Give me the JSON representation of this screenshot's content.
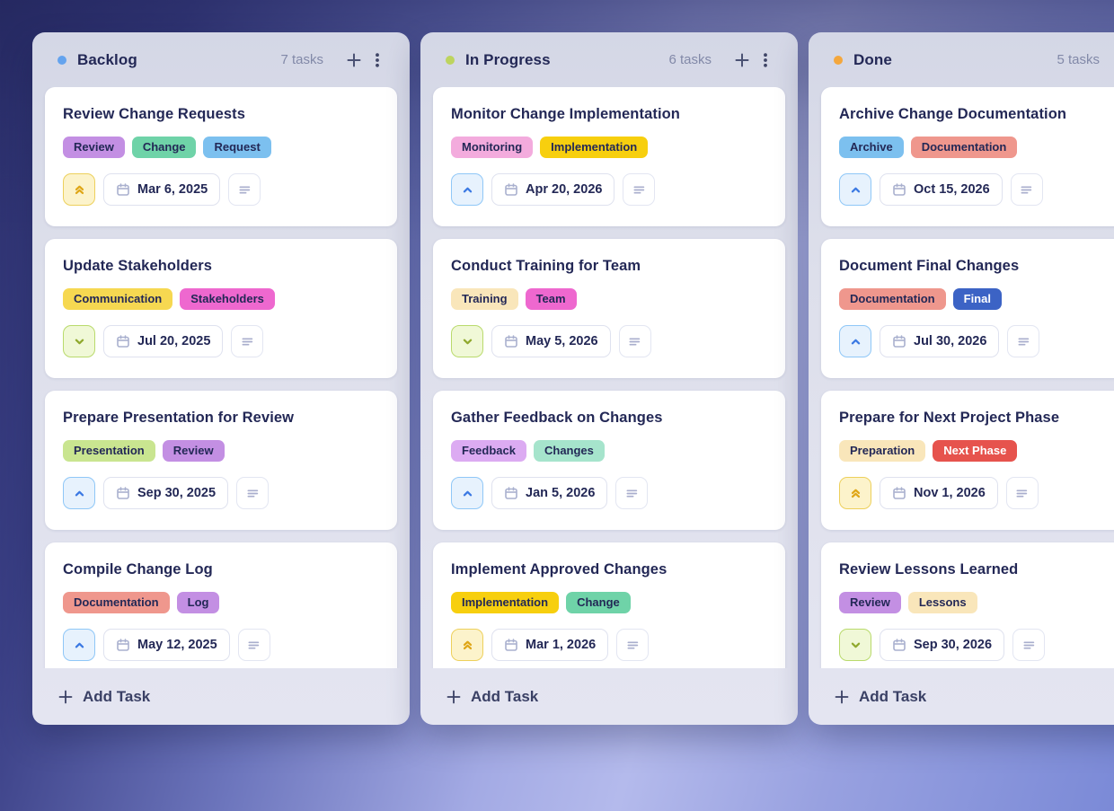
{
  "priorities": {
    "urgent": {
      "bg": "#fcf3cb",
      "border": "#edd05c",
      "icon_color": "#dfa617",
      "icon": "chevrons-up"
    },
    "high": {
      "bg": "#e7f2fd",
      "border": "#8fc7f7",
      "icon_color": "#3b79e3",
      "icon": "chevron-up"
    },
    "low": {
      "bg": "#f0f8d7",
      "border": "#b9da6c",
      "icon_color": "#90a92e",
      "icon": "chevron-down"
    }
  },
  "tag_default_text_color": "#232856",
  "board": {
    "columns": [
      {
        "title": "Backlog",
        "dot_color": "#64a3ee",
        "count_label": "7 tasks",
        "add_task_label": "Add Task",
        "cards": [
          {
            "title": "Review Change Requests",
            "tags": [
              {
                "label": "Review",
                "bg": "#c38fe3"
              },
              {
                "label": "Change",
                "bg": "#6fd3a8"
              },
              {
                "label": "Request",
                "bg": "#7cc0ef"
              }
            ],
            "priority": "urgent",
            "due_date": "Mar 6, 2025"
          },
          {
            "title": "Update Stakeholders",
            "tags": [
              {
                "label": "Communication",
                "bg": "#f6d851"
              },
              {
                "label": "Stakeholders",
                "bg": "#ee68cf"
              }
            ],
            "priority": "low",
            "due_date": "Jul 20, 2025"
          },
          {
            "title": "Prepare Presentation for Review",
            "tags": [
              {
                "label": "Presentation",
                "bg": "#c9e590"
              },
              {
                "label": "Review",
                "bg": "#c38fe3"
              }
            ],
            "priority": "high",
            "due_date": "Sep 30, 2025"
          },
          {
            "title": "Compile Change Log",
            "tags": [
              {
                "label": "Documentation",
                "bg": "#ef978d"
              },
              {
                "label": "Log",
                "bg": "#c38fe3"
              }
            ],
            "priority": "high",
            "due_date": "May 12, 2025"
          }
        ]
      },
      {
        "title": "In Progress",
        "dot_color": "#bdd45f",
        "count_label": "6 tasks",
        "add_task_label": "Add Task",
        "cards": [
          {
            "title": "Monitor Change Implementation",
            "tags": [
              {
                "label": "Monitoring",
                "bg": "#f3abdd"
              },
              {
                "label": "Implementation",
                "bg": "#f7cf0e"
              }
            ],
            "priority": "high",
            "due_date": "Apr 20, 2026"
          },
          {
            "title": "Conduct Training for Team",
            "tags": [
              {
                "label": "Training",
                "bg": "#f9e6ba"
              },
              {
                "label": "Team",
                "bg": "#ee68cf"
              }
            ],
            "priority": "low",
            "due_date": "May 5, 2026"
          },
          {
            "title": "Gather Feedback on Changes",
            "tags": [
              {
                "label": "Feedback",
                "bg": "#dcabf2"
              },
              {
                "label": "Changes",
                "bg": "#a6e4cc"
              }
            ],
            "priority": "high",
            "due_date": "Jan 5, 2026"
          },
          {
            "title": "Implement Approved Changes",
            "tags": [
              {
                "label": "Implementation",
                "bg": "#f7cf0e"
              },
              {
                "label": "Change",
                "bg": "#6fd3a8"
              }
            ],
            "priority": "urgent",
            "due_date": "Mar 1, 2026"
          }
        ]
      },
      {
        "title": "Done",
        "dot_color": "#f4a73d",
        "count_label": "5 tasks",
        "add_task_label": "Add Task",
        "cards": [
          {
            "title": "Archive Change Documentation",
            "tags": [
              {
                "label": "Archive",
                "bg": "#7cc0ef"
              },
              {
                "label": "Documentation",
                "bg": "#ef978d"
              }
            ],
            "priority": "high",
            "due_date": "Oct 15, 2026"
          },
          {
            "title": "Document Final Changes",
            "tags": [
              {
                "label": "Documentation",
                "bg": "#ef978d"
              },
              {
                "label": "Final",
                "bg": "#3c63c5",
                "fg": "#ffffff"
              }
            ],
            "priority": "high",
            "due_date": "Jul 30, 2026"
          },
          {
            "title": "Prepare for Next Project Phase",
            "tags": [
              {
                "label": "Preparation",
                "bg": "#f9e6ba"
              },
              {
                "label": "Next Phase",
                "bg": "#e6534d",
                "fg": "#ffffff"
              }
            ],
            "priority": "urgent",
            "due_date": "Nov 1, 2026"
          },
          {
            "title": "Review Lessons Learned",
            "tags": [
              {
                "label": "Review",
                "bg": "#c38fe3"
              },
              {
                "label": "Lessons",
                "bg": "#f9e6ba"
              }
            ],
            "priority": "low",
            "due_date": "Sep 30, 2026"
          }
        ]
      }
    ]
  }
}
